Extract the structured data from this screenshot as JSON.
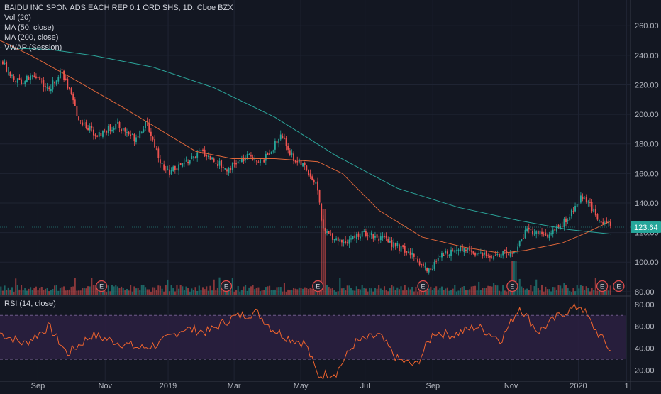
{
  "legend": {
    "title": "BAIDU INC SPON ADS EACH REP 0.1 ORD SHS, 1D, Cboe BZX",
    "lines": [
      "Vol (20)",
      "MA (50, close)",
      "MA (200, close)",
      "VWAP (Session)"
    ]
  },
  "rsi_legend": "RSI (14, close)",
  "price_badge": "123.64",
  "earnings_marker": "E",
  "colors": {
    "up": "#26a69a",
    "down": "#ef5350",
    "ma50": "#e0673a",
    "ma200": "#2ba59a",
    "rsi_line": "#f0642e",
    "rsi_band": "#2a1f3f",
    "bg": "#131722",
    "grid": "#1f2433",
    "text": "#b2b5be"
  },
  "chart_data": [
    {
      "type": "candlestick",
      "y_ticks": [
        80,
        100,
        120,
        140,
        160,
        180,
        200,
        220,
        240,
        260
      ],
      "ylim": [
        78,
        275
      ],
      "x_labels": [
        "Sep",
        "Nov",
        "2019",
        "Mar",
        "May",
        "Jul",
        "Sep",
        "Nov",
        "2020",
        "1"
      ],
      "last_price": 123.64,
      "earnings_markers": 7,
      "price_path": [
        {
          "t": 0.0,
          "v": 236
        },
        {
          "t": 0.03,
          "v": 222
        },
        {
          "t": 0.06,
          "v": 226
        },
        {
          "t": 0.08,
          "v": 216
        },
        {
          "t": 0.1,
          "v": 231
        },
        {
          "t": 0.13,
          "v": 196
        },
        {
          "t": 0.16,
          "v": 186
        },
        {
          "t": 0.19,
          "v": 193
        },
        {
          "t": 0.22,
          "v": 184
        },
        {
          "t": 0.24,
          "v": 194
        },
        {
          "t": 0.27,
          "v": 160
        },
        {
          "t": 0.3,
          "v": 166
        },
        {
          "t": 0.33,
          "v": 175
        },
        {
          "t": 0.37,
          "v": 163
        },
        {
          "t": 0.41,
          "v": 172
        },
        {
          "t": 0.43,
          "v": 168
        },
        {
          "t": 0.46,
          "v": 186
        },
        {
          "t": 0.48,
          "v": 170
        },
        {
          "t": 0.5,
          "v": 164
        },
        {
          "t": 0.52,
          "v": 150
        },
        {
          "t": 0.528,
          "v": 121
        },
        {
          "t": 0.56,
          "v": 114
        },
        {
          "t": 0.6,
          "v": 120
        },
        {
          "t": 0.64,
          "v": 113
        },
        {
          "t": 0.68,
          "v": 103
        },
        {
          "t": 0.7,
          "v": 94
        },
        {
          "t": 0.73,
          "v": 107
        },
        {
          "t": 0.76,
          "v": 110
        },
        {
          "t": 0.79,
          "v": 104
        },
        {
          "t": 0.84,
          "v": 106
        },
        {
          "t": 0.86,
          "v": 121
        },
        {
          "t": 0.9,
          "v": 118
        },
        {
          "t": 0.93,
          "v": 130
        },
        {
          "t": 0.955,
          "v": 146
        },
        {
          "t": 0.975,
          "v": 131
        },
        {
          "t": 1.0,
          "v": 123.64
        }
      ],
      "ma50": [
        {
          "t": 0.0,
          "v": 250
        },
        {
          "t": 0.05,
          "v": 240
        },
        {
          "t": 0.12,
          "v": 224
        },
        {
          "t": 0.2,
          "v": 205
        },
        {
          "t": 0.26,
          "v": 190
        },
        {
          "t": 0.32,
          "v": 175
        },
        {
          "t": 0.38,
          "v": 170
        },
        {
          "t": 0.45,
          "v": 170
        },
        {
          "t": 0.52,
          "v": 168
        },
        {
          "t": 0.56,
          "v": 160
        },
        {
          "t": 0.62,
          "v": 135
        },
        {
          "t": 0.69,
          "v": 117
        },
        {
          "t": 0.76,
          "v": 110
        },
        {
          "t": 0.82,
          "v": 106
        },
        {
          "t": 0.86,
          "v": 108
        },
        {
          "t": 0.92,
          "v": 113
        },
        {
          "t": 0.96,
          "v": 120
        },
        {
          "t": 1.0,
          "v": 128
        }
      ],
      "ma200": [
        {
          "t": 0.0,
          "v": 245
        },
        {
          "t": 0.08,
          "v": 244
        },
        {
          "t": 0.15,
          "v": 240
        },
        {
          "t": 0.25,
          "v": 232
        },
        {
          "t": 0.35,
          "v": 218
        },
        {
          "t": 0.45,
          "v": 198
        },
        {
          "t": 0.55,
          "v": 172
        },
        {
          "t": 0.65,
          "v": 150
        },
        {
          "t": 0.75,
          "v": 137
        },
        {
          "t": 0.85,
          "v": 128
        },
        {
          "t": 0.93,
          "v": 122
        },
        {
          "t": 1.0,
          "v": 119
        }
      ]
    },
    {
      "type": "line",
      "name": "RSI (14, close)",
      "y_ticks": [
        20,
        40,
        60,
        80
      ],
      "ylim": [
        10,
        87
      ],
      "bands": [
        30,
        70
      ],
      "path": [
        {
          "t": 0.0,
          "v": 54
        },
        {
          "t": 0.04,
          "v": 44
        },
        {
          "t": 0.08,
          "v": 60
        },
        {
          "t": 0.11,
          "v": 35
        },
        {
          "t": 0.15,
          "v": 52
        },
        {
          "t": 0.19,
          "v": 46
        },
        {
          "t": 0.23,
          "v": 40
        },
        {
          "t": 0.26,
          "v": 44
        },
        {
          "t": 0.3,
          "v": 58
        },
        {
          "t": 0.34,
          "v": 55
        },
        {
          "t": 0.38,
          "v": 68
        },
        {
          "t": 0.42,
          "v": 73
        },
        {
          "t": 0.445,
          "v": 58
        },
        {
          "t": 0.47,
          "v": 50
        },
        {
          "t": 0.5,
          "v": 44
        },
        {
          "t": 0.52,
          "v": 15
        },
        {
          "t": 0.55,
          "v": 18
        },
        {
          "t": 0.58,
          "v": 45
        },
        {
          "t": 0.62,
          "v": 52
        },
        {
          "t": 0.65,
          "v": 30
        },
        {
          "t": 0.68,
          "v": 24
        },
        {
          "t": 0.71,
          "v": 55
        },
        {
          "t": 0.74,
          "v": 52
        },
        {
          "t": 0.78,
          "v": 60
        },
        {
          "t": 0.82,
          "v": 48
        },
        {
          "t": 0.85,
          "v": 78
        },
        {
          "t": 0.88,
          "v": 55
        },
        {
          "t": 0.92,
          "v": 72
        },
        {
          "t": 0.95,
          "v": 79
        },
        {
          "t": 0.97,
          "v": 60
        },
        {
          "t": 1.0,
          "v": 37
        }
      ]
    }
  ]
}
